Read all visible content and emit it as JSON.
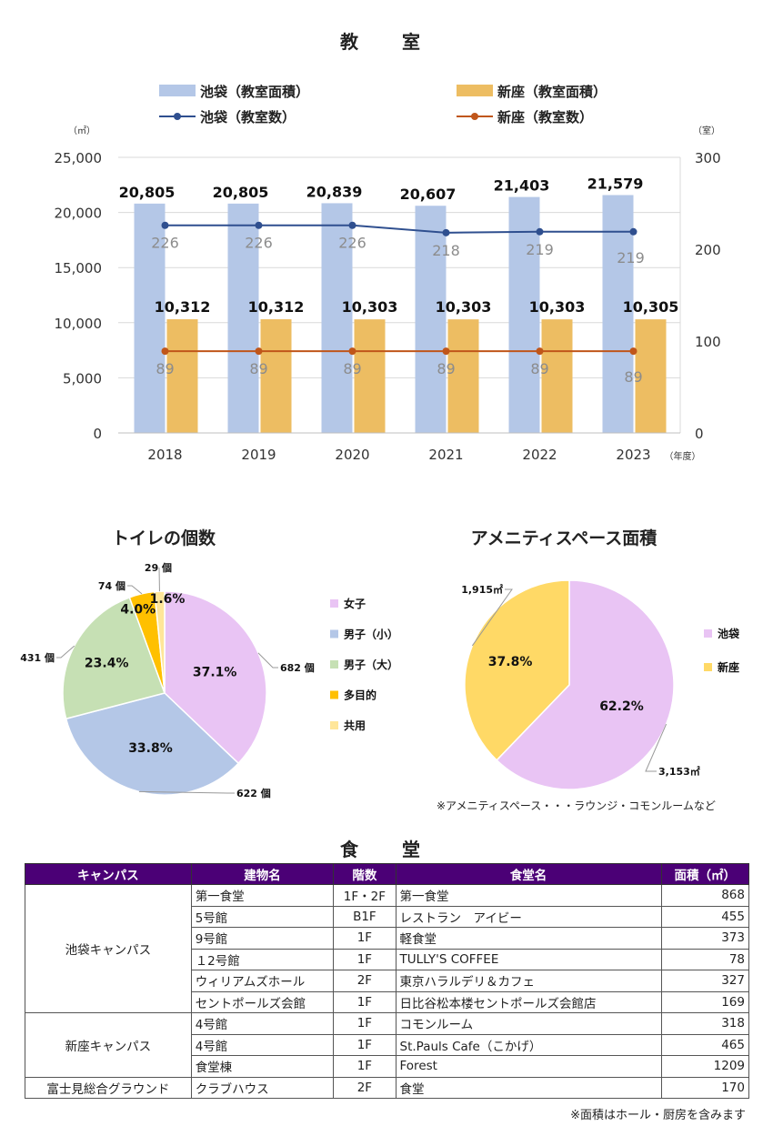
{
  "classroom": {
    "title": "教　室",
    "left_unit": "（㎡）",
    "right_unit": "（室）",
    "year_unit": "（年度）",
    "legend": [
      {
        "label": "池袋（教室面積）",
        "kind": "bar",
        "color": "#B4C7E7"
      },
      {
        "label": "新座（教室面積）",
        "kind": "bar",
        "color": "#EDBD62"
      },
      {
        "label": "池袋（教室数）",
        "kind": "line",
        "color": "#2F4F8F"
      },
      {
        "label": "新座（教室数）",
        "kind": "line",
        "color": "#C0561A"
      }
    ]
  },
  "toilet": {
    "title": "トイレの個数"
  },
  "amenity": {
    "title": "アメニティスペース面積",
    "note": "※アメニティスペース・・・ラウンジ・コモンルームなど"
  },
  "chart_data": [
    {
      "type": "bar",
      "title": "教　室",
      "categories": [
        "2018",
        "2019",
        "2020",
        "2021",
        "2022",
        "2023"
      ],
      "y_left": {
        "ylim": [
          0,
          25000
        ],
        "ticks": [
          "0",
          "5,000",
          "10,000",
          "15,000",
          "20,000",
          "25,000"
        ]
      },
      "y_right": {
        "ylim": [
          0,
          300
        ],
        "ticks": [
          "0",
          "100",
          "200",
          "300"
        ]
      },
      "series": [
        {
          "name": "池袋（教室面積）",
          "axis": "left",
          "kind": "bar",
          "color": "#B4C7E7",
          "values": [
            20805,
            20805,
            20839,
            20607,
            21403,
            21579
          ],
          "labels": [
            "20,805",
            "20,805",
            "20,839",
            "20,607",
            "21,403",
            "21,579"
          ]
        },
        {
          "name": "新座（教室面積）",
          "axis": "left",
          "kind": "bar",
          "color": "#EDBD62",
          "values": [
            10312,
            10312,
            10303,
            10303,
            10303,
            10305
          ],
          "labels": [
            "10,312",
            "10,312",
            "10,303",
            "10,303",
            "10,303",
            "10,305"
          ]
        },
        {
          "name": "池袋（教室数）",
          "axis": "right",
          "kind": "line",
          "color": "#2F4F8F",
          "values": [
            226,
            226,
            226,
            218,
            219,
            219
          ],
          "labels": [
            "226",
            "226",
            "226",
            "218",
            "219",
            "219"
          ]
        },
        {
          "name": "新座（教室数）",
          "axis": "right",
          "kind": "line",
          "color": "#C0561A",
          "values": [
            89,
            89,
            89,
            89,
            89,
            89
          ],
          "labels": [
            "89",
            "89",
            "89",
            "89",
            "89",
            "89"
          ]
        }
      ]
    },
    {
      "type": "pie",
      "title": "トイレの個数",
      "slices": [
        {
          "name": "女子",
          "value": 682,
          "count_label": "682 個",
          "pct": "37.1%",
          "color": "#E9C4F4"
        },
        {
          "name": "男子（小）",
          "value": 622,
          "count_label": "622 個",
          "pct": "33.8%",
          "color": "#B4C7E7"
        },
        {
          "name": "男子（大）",
          "value": 431,
          "count_label": "431 個",
          "pct": "23.4%",
          "color": "#C6E0B4"
        },
        {
          "name": "多目的",
          "value": 74,
          "count_label": "74 個",
          "pct": "4.0%",
          "color": "#FFC000"
        },
        {
          "name": "共用",
          "value": 29,
          "count_label": "29 個",
          "pct": "1.6%",
          "color": "#FFE699"
        }
      ]
    },
    {
      "type": "pie",
      "title": "アメニティスペース面積",
      "slices": [
        {
          "name": "池袋",
          "value": 3153,
          "count_label": "3,153㎡",
          "pct": "62.2%",
          "color": "#E9C4F4"
        },
        {
          "name": "新座",
          "value": 1915,
          "count_label": "1,915㎡",
          "pct": "37.8%",
          "color": "#FFD966"
        }
      ]
    }
  ],
  "dining": {
    "title": "食　堂",
    "headers": [
      "キャンパス",
      "建物名",
      "階数",
      "食堂名",
      "面積（㎡）"
    ],
    "groups": [
      {
        "campus": "池袋キャンパス",
        "rows": [
          {
            "building": "第一食堂",
            "floor": "1F・2F",
            "name": "第一食堂",
            "area": "868"
          },
          {
            "building": "5号館",
            "floor": "B1F",
            "name": "レストラン　アイビー",
            "area": "455"
          },
          {
            "building": "9号館",
            "floor": "1F",
            "name": "軽食堂",
            "area": "373"
          },
          {
            "building": "１2号館",
            "floor": "1F",
            "name": "TULLY'S COFFEE",
            "area": "78"
          },
          {
            "building": "ウィリアムズホール",
            "floor": "2F",
            "name": "東京ハラルデリ＆カフェ",
            "area": "327"
          },
          {
            "building": "セントポールズ会館",
            "floor": "1F",
            "name": "日比谷松本楼セントポールズ会館店",
            "area": "169"
          }
        ]
      },
      {
        "campus": "新座キャンパス",
        "rows": [
          {
            "building": "4号館",
            "floor": "1F",
            "name": "コモンルーム",
            "area": "318"
          },
          {
            "building": "4号館",
            "floor": "1F",
            "name": "St.Pauls Cafe（こかげ）",
            "area": "465"
          },
          {
            "building": "食堂棟",
            "floor": "1F",
            "name": "Forest",
            "area": "1209"
          }
        ]
      },
      {
        "campus": "富士見総合グラウンド",
        "rows": [
          {
            "building": "クラブハウス",
            "floor": "2F",
            "name": "食堂",
            "area": "170"
          }
        ]
      }
    ],
    "note": "※面積はホール・厨房を含みます"
  }
}
